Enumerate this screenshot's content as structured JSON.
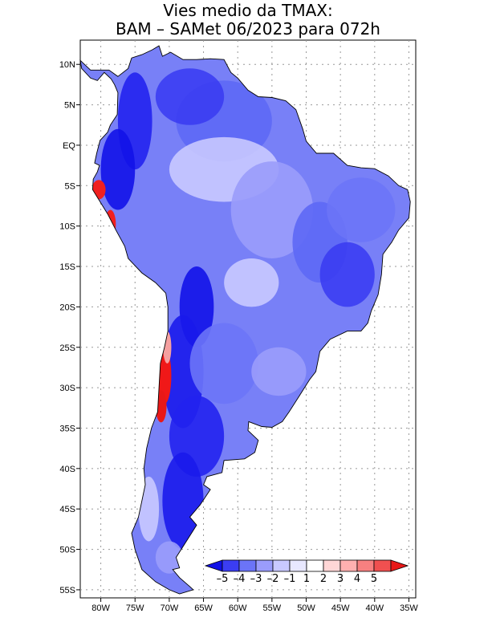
{
  "title_line1": "Vies medio da TMAX:",
  "title_line2": "BAM – SAMet 06/2023  para 072h",
  "map": {
    "lon_range": [
      -83,
      -34
    ],
    "lat_range": [
      -56,
      13
    ],
    "lat_ticks": [
      {
        "value": 10,
        "label": "10N"
      },
      {
        "value": 5,
        "label": "5N"
      },
      {
        "value": 0,
        "label": "EQ"
      },
      {
        "value": -5,
        "label": "5S"
      },
      {
        "value": -10,
        "label": "10S"
      },
      {
        "value": -15,
        "label": "15S"
      },
      {
        "value": -20,
        "label": "20S"
      },
      {
        "value": -25,
        "label": "25S"
      },
      {
        "value": -30,
        "label": "30S"
      },
      {
        "value": -35,
        "label": "35S"
      },
      {
        "value": -40,
        "label": "40S"
      },
      {
        "value": -45,
        "label": "45S"
      },
      {
        "value": -50,
        "label": "50S"
      },
      {
        "value": -55,
        "label": "55S"
      }
    ],
    "lon_ticks": [
      {
        "value": -80,
        "label": "80W"
      },
      {
        "value": -75,
        "label": "75W"
      },
      {
        "value": -70,
        "label": "70W"
      },
      {
        "value": -65,
        "label": "65W"
      },
      {
        "value": -60,
        "label": "60W"
      },
      {
        "value": -55,
        "label": "55W"
      },
      {
        "value": -50,
        "label": "50W"
      },
      {
        "value": -45,
        "label": "45W"
      },
      {
        "value": -40,
        "label": "40W"
      },
      {
        "value": -35,
        "label": "35W"
      }
    ],
    "grid": "dotted",
    "continent_outline": [
      [
        -77.5,
        8.5
      ],
      [
        -76,
        9.5
      ],
      [
        -75.5,
        10.8
      ],
      [
        -74,
        11.2
      ],
      [
        -72.5,
        11.8
      ],
      [
        -71.5,
        12.3
      ],
      [
        -71,
        11
      ],
      [
        -69.8,
        11.5
      ],
      [
        -68,
        10.6
      ],
      [
        -66,
        10.6
      ],
      [
        -64,
        10.7
      ],
      [
        -62,
        10.6
      ],
      [
        -61,
        9
      ],
      [
        -60,
        8.3
      ],
      [
        -58.5,
        6.8
      ],
      [
        -57,
        6
      ],
      [
        -55,
        5.9
      ],
      [
        -53,
        5.5
      ],
      [
        -51.5,
        4.4
      ],
      [
        -50.5,
        2
      ],
      [
        -50,
        0.5
      ],
      [
        -48.5,
        -1
      ],
      [
        -46,
        -1
      ],
      [
        -44,
        -2.5
      ],
      [
        -42,
        -2.8
      ],
      [
        -40,
        -2.9
      ],
      [
        -38,
        -3.8
      ],
      [
        -36.5,
        -5
      ],
      [
        -35.2,
        -5.5
      ],
      [
        -34.8,
        -7
      ],
      [
        -35,
        -9
      ],
      [
        -36.5,
        -10.5
      ],
      [
        -37.5,
        -12
      ],
      [
        -38.8,
        -13.5
      ],
      [
        -39,
        -16
      ],
      [
        -39.5,
        -18.5
      ],
      [
        -40.5,
        -20.5
      ],
      [
        -41,
        -22
      ],
      [
        -42,
        -23
      ],
      [
        -44,
        -23
      ],
      [
        -46.5,
        -24
      ],
      [
        -48,
        -25.5
      ],
      [
        -48.6,
        -28
      ],
      [
        -49.5,
        -29
      ],
      [
        -51,
        -31
      ],
      [
        -52.5,
        -33
      ],
      [
        -53.5,
        -34.2
      ],
      [
        -55,
        -34.9
      ],
      [
        -56.5,
        -34.8
      ],
      [
        -58.4,
        -34.2
      ],
      [
        -58.5,
        -35.3
      ],
      [
        -57,
        -36.5
      ],
      [
        -57.5,
        -38
      ],
      [
        -59,
        -38.8
      ],
      [
        -62,
        -39
      ],
      [
        -62.3,
        -40.5
      ],
      [
        -64.5,
        -41
      ],
      [
        -65,
        -42
      ],
      [
        -64,
        -42.6
      ],
      [
        -65.5,
        -44.5
      ],
      [
        -67,
        -46
      ],
      [
        -66,
        -47
      ],
      [
        -67.5,
        -49
      ],
      [
        -69,
        -51
      ],
      [
        -68.5,
        -52.3
      ],
      [
        -69.5,
        -52.5
      ],
      [
        -68.5,
        -53.5
      ],
      [
        -67,
        -54.6
      ],
      [
        -66.5,
        -55
      ],
      [
        -68.5,
        -55.5
      ],
      [
        -70,
        -55
      ],
      [
        -72,
        -54
      ],
      [
        -74,
        -52.5
      ],
      [
        -75,
        -50
      ],
      [
        -75.5,
        -48
      ],
      [
        -74.5,
        -46
      ],
      [
        -74,
        -44
      ],
      [
        -73.5,
        -42
      ],
      [
        -73.7,
        -40
      ],
      [
        -73.3,
        -37.5
      ],
      [
        -72.6,
        -35
      ],
      [
        -71.7,
        -33
      ],
      [
        -71.5,
        -30
      ],
      [
        -71.3,
        -27
      ],
      [
        -70.7,
        -25
      ],
      [
        -70.2,
        -23
      ],
      [
        -70.2,
        -20
      ],
      [
        -70.5,
        -18.3
      ],
      [
        -72,
        -17
      ],
      [
        -74,
        -15.8
      ],
      [
        -76,
        -14
      ],
      [
        -76.5,
        -12.5
      ],
      [
        -77.8,
        -10.5
      ],
      [
        -79,
        -8.5
      ],
      [
        -80.1,
        -7
      ],
      [
        -81.2,
        -5.5
      ],
      [
        -81.1,
        -4.2
      ],
      [
        -80.5,
        -3.3
      ],
      [
        -80.2,
        -2.5
      ],
      [
        -80.9,
        -2.2
      ],
      [
        -80.6,
        -1
      ],
      [
        -80.1,
        0.6
      ],
      [
        -79,
        1.6
      ],
      [
        -78.6,
        2.5
      ],
      [
        -77.6,
        3.8
      ],
      [
        -77.5,
        6.5
      ],
      [
        -78,
        7.5
      ],
      [
        -78.5,
        8.2
      ],
      [
        -79.5,
        9
      ],
      [
        -80.5,
        8
      ],
      [
        -81.5,
        8.3
      ],
      [
        -82.8,
        9.5
      ],
      [
        -83,
        10.5
      ],
      [
        -81.5,
        9.3
      ],
      [
        -80,
        9.3
      ],
      [
        -78.8,
        9.3
      ],
      [
        -77.5,
        8.5
      ]
    ],
    "blobs": [
      {
        "lon": -62,
        "lat": 3,
        "rx": 7,
        "ry": 5,
        "color": "#5d68f5"
      },
      {
        "lon": -67,
        "lat": 6,
        "rx": 5,
        "ry": 3.5,
        "color": "#3b3df2"
      },
      {
        "lon": -75,
        "lat": 3,
        "rx": 2.5,
        "ry": 6,
        "color": "#2222ee"
      },
      {
        "lon": -77.5,
        "lat": -3,
        "rx": 2.5,
        "ry": 5,
        "color": "#1212e8"
      },
      {
        "lon": -62,
        "lat": -3,
        "rx": 8,
        "ry": 4,
        "color": "#c9c9ff"
      },
      {
        "lon": -55,
        "lat": -8,
        "rx": 6,
        "ry": 6,
        "color": "#9a9cfb"
      },
      {
        "lon": -48,
        "lat": -12,
        "rx": 4,
        "ry": 5,
        "color": "#5d68f5"
      },
      {
        "lon": -42,
        "lat": -8,
        "rx": 5,
        "ry": 4,
        "color": "#6b74f7"
      },
      {
        "lon": -44,
        "lat": -16,
        "rx": 4,
        "ry": 4,
        "color": "#3b3df2"
      },
      {
        "lon": -58,
        "lat": -17,
        "rx": 4,
        "ry": 3,
        "color": "#c9c9ff"
      },
      {
        "lon": -66,
        "lat": -20,
        "rx": 2.5,
        "ry": 5,
        "color": "#1212e8"
      },
      {
        "lon": -68,
        "lat": -28,
        "rx": 3,
        "ry": 7,
        "color": "#1a1aeb"
      },
      {
        "lon": -62,
        "lat": -27,
        "rx": 5,
        "ry": 5,
        "color": "#6b74f7"
      },
      {
        "lon": -54,
        "lat": -28,
        "rx": 4,
        "ry": 3,
        "color": "#9a9cfb"
      },
      {
        "lon": -66,
        "lat": -36,
        "rx": 4,
        "ry": 5,
        "color": "#2222ee"
      },
      {
        "lon": -68,
        "lat": -44,
        "rx": 3,
        "ry": 6,
        "color": "#1a1aeb"
      },
      {
        "lon": -70,
        "lat": -51,
        "rx": 2,
        "ry": 2,
        "color": "#9a9cfb"
      },
      {
        "lon": -73,
        "lat": -45,
        "rx": 1.5,
        "ry": 4,
        "color": "#c9c9ff"
      }
    ],
    "red_patches": [
      {
        "lon": -80.3,
        "lat": -5.5,
        "rx": 1,
        "ry": 1.2,
        "color": "#f02020"
      },
      {
        "lon": -78.6,
        "lat": -9.8,
        "rx": 0.8,
        "ry": 1.8,
        "color": "#f02020"
      },
      {
        "lon": -70.7,
        "lat": -28.5,
        "rx": 1,
        "ry": 3.5,
        "color": "#f01818"
      },
      {
        "lon": -71.2,
        "lat": -32.3,
        "rx": 0.8,
        "ry": 2,
        "color": "#e81818"
      },
      {
        "lon": -70.3,
        "lat": -25,
        "rx": 0.6,
        "ry": 2,
        "color": "#f5a0a0"
      },
      {
        "lon": -70.8,
        "lat": -20.2,
        "rx": 0.5,
        "ry": 0.8,
        "color": "#f02020"
      }
    ]
  },
  "colorbar": {
    "colors": [
      "#1010e6",
      "#3b3df2",
      "#6b74f7",
      "#9a9cfb",
      "#c9c9ff",
      "#e8e8ff",
      "#ffffff",
      "#ffd6d6",
      "#ffb0b0",
      "#f78080",
      "#f05050",
      "#e81818"
    ],
    "labels": [
      "–5",
      "–4",
      "–3",
      "–2",
      "–1",
      "1",
      "2",
      "3",
      "4",
      "5"
    ]
  }
}
